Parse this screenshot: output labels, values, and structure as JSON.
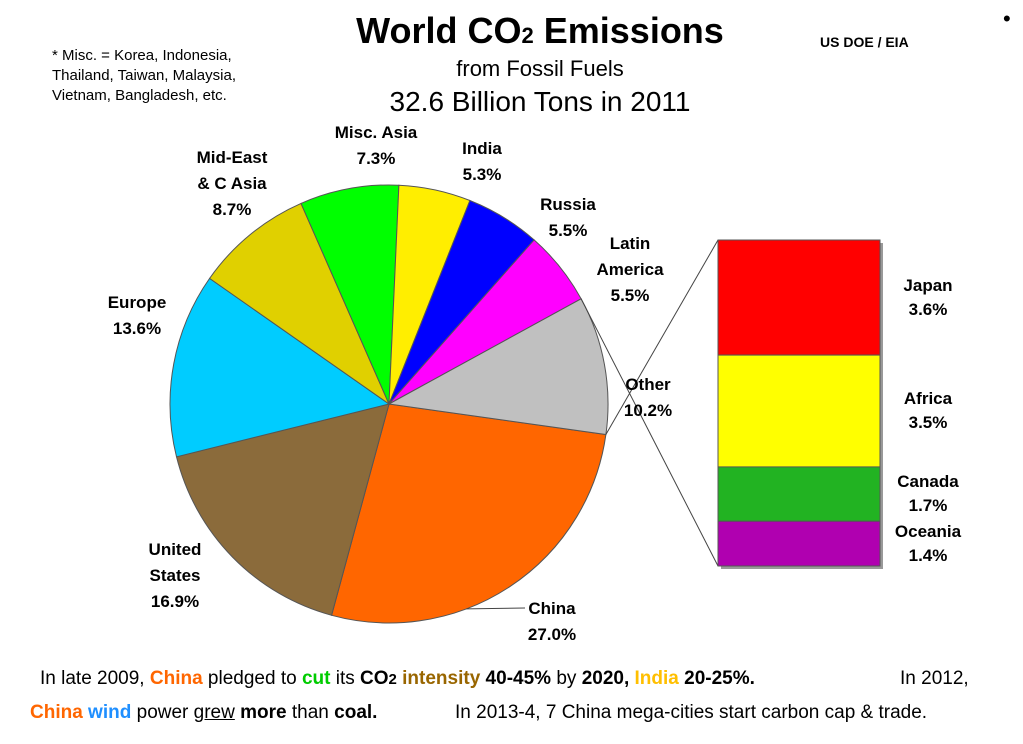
{
  "header": {
    "title_main": "World CO",
    "title_sub": "2",
    "title_end": " Emissions",
    "subtitle": "from Fossil Fuels",
    "subtitle2": "32.6 Billion Tons in 2011",
    "source": "US DOE / EIA",
    "bullet": "•",
    "note": "* Misc. = Korea, Indonesia, Thailand, Taiwan, Malaysia, Vietnam, Bangladesh, etc."
  },
  "colors": {
    "china": "#ff6600",
    "us": "#8b6b3b",
    "europe": "#00ccff",
    "mideast": "#e0d000",
    "misc_asia": "#00ff00",
    "india": "#ffee00",
    "russia": "#0000ff",
    "latin_america": "#ff00ff",
    "other": "#c0c0c0",
    "japan": "#ff0000",
    "africa": "#ffff00",
    "canada": "#22b322",
    "oceania": "#b000b0"
  },
  "chart_data": [
    {
      "type": "pie",
      "title": "World CO2 Emissions",
      "slices": [
        {
          "label": "China",
          "value": 27.0,
          "text": "China\n27.0%"
        },
        {
          "label": "United States",
          "value": 16.9,
          "text": "United\nStates\n16.9%"
        },
        {
          "label": "Europe",
          "value": 13.6,
          "text": "Europe\n13.6%"
        },
        {
          "label": "Mid-East & C Asia",
          "value": 8.7,
          "text": "Mid-East\n& C Asia\n8.7%"
        },
        {
          "label": "Misc. Asia",
          "value": 7.3,
          "text": "Misc. Asia\n7.3%"
        },
        {
          "label": "India",
          "value": 5.3,
          "text": "India\n5.3%"
        },
        {
          "label": "Russia",
          "value": 5.5,
          "text": "Russia\n5.5%"
        },
        {
          "label": "Latin America",
          "value": 5.5,
          "text": "Latin\nAmerica\n5.5%"
        },
        {
          "label": "Other",
          "value": 10.2,
          "text": "Other\n10.2%"
        }
      ]
    },
    {
      "type": "bar",
      "stacked": true,
      "parent": "Other",
      "segments": [
        {
          "label": "Japan",
          "value": 3.6,
          "text": "Japan\n3.6%"
        },
        {
          "label": "Africa",
          "value": 3.5,
          "text": "Africa\n3.5%"
        },
        {
          "label": "Canada",
          "value": 1.7,
          "text": "Canada\n1.7%"
        },
        {
          "label": "Oceania",
          "value": 1.4,
          "text": "Oceania\n1.4%"
        }
      ]
    }
  ],
  "footer": {
    "l1_a": "In late 2009, ",
    "l1_china": "China",
    "l1_b": " pledged to ",
    "l1_cut": "cut",
    "l1_c": " its ",
    "l1_co": "CO",
    "l1_2": "2",
    "l1_intensity": " intensity",
    "l1_pct": " 40-45%",
    "l1_by": " by ",
    "l1_year": "2020,",
    "l1_india": " India",
    "l1_ipct": " 20-25%.",
    "l1_right": "In 2012,",
    "l2_china": "China",
    "l2_wind": " wind",
    "l2_a": " power ",
    "l2_grew": "grew",
    "l2_more": " more",
    "l2_b": " than ",
    "l2_coal": "coal.",
    "l2_right": "In 2013-4, 7 China mega-cities start carbon cap & trade."
  }
}
